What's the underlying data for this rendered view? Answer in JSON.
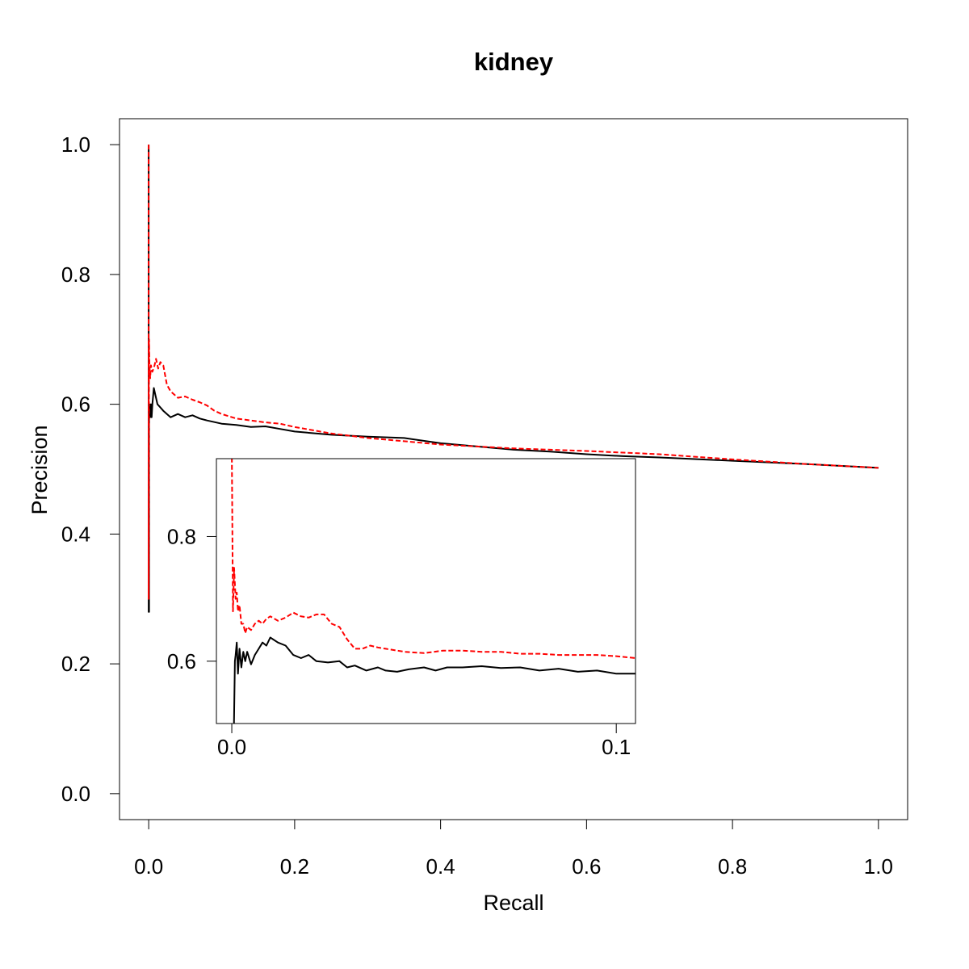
{
  "colors": {
    "series_1": "#000000",
    "series_2": "#ff0000"
  },
  "chart_data": [
    {
      "type": "line",
      "title": "kidney",
      "xlabel": "Recall",
      "ylabel": "Precision",
      "xlim": [
        -0.04,
        1.04
      ],
      "ylim": [
        -0.04,
        1.04
      ],
      "xticks": [
        0.0,
        0.2,
        0.4,
        0.6,
        0.8,
        1.0
      ],
      "xtick_labels": [
        "0.0",
        "0.2",
        "0.4",
        "0.6",
        "0.8",
        "1.0"
      ],
      "yticks": [
        0.0,
        0.2,
        0.4,
        0.6,
        0.8,
        1.0
      ],
      "ytick_labels": [
        "0.0",
        "0.2",
        "0.4",
        "0.6",
        "0.8",
        "1.0"
      ],
      "grid": false,
      "series": [
        {
          "color": "#000000",
          "dash": "solid",
          "x": [
            0,
            0,
            0.0005,
            0.0005,
            0.001,
            0.002,
            0.003,
            0.004,
            0.005,
            0.007,
            0.009,
            0.012,
            0.016,
            0.02,
            0.025,
            0.03,
            0.04,
            0.05,
            0.06,
            0.07,
            0.08,
            0.1,
            0.12,
            0.14,
            0.16,
            0.18,
            0.2,
            0.25,
            0.3,
            0.35,
            0.4,
            0.45,
            0.5,
            0.55,
            0.6,
            0.65,
            0.7,
            0.8,
            0.9,
            1.0
          ],
          "y": [
            1.0,
            0.28,
            0.28,
            0.57,
            0.6,
            0.58,
            0.6,
            0.58,
            0.6,
            0.625,
            0.615,
            0.6,
            0.595,
            0.59,
            0.585,
            0.58,
            0.585,
            0.58,
            0.583,
            0.578,
            0.575,
            0.57,
            0.568,
            0.565,
            0.566,
            0.562,
            0.558,
            0.553,
            0.55,
            0.548,
            0.54,
            0.535,
            0.53,
            0.527,
            0.523,
            0.52,
            0.518,
            0.513,
            0.508,
            0.502
          ]
        },
        {
          "color": "#ff0000",
          "dash": "dashed",
          "x": [
            0,
            0,
            0.0005,
            0.001,
            0.002,
            0.003,
            0.005,
            0.008,
            0.01,
            0.013,
            0.016,
            0.02,
            0.025,
            0.03,
            0.035,
            0.04,
            0.05,
            0.06,
            0.07,
            0.08,
            0.09,
            0.1,
            0.12,
            0.14,
            0.16,
            0.18,
            0.2,
            0.25,
            0.3,
            0.35,
            0.4,
            0.5,
            0.6,
            0.7,
            0.8,
            0.9,
            1.0
          ],
          "y": [
            1.0,
            0.3,
            0.7,
            0.66,
            0.64,
            0.66,
            0.65,
            0.66,
            0.67,
            0.655,
            0.665,
            0.66,
            0.63,
            0.62,
            0.615,
            0.61,
            0.612,
            0.607,
            0.603,
            0.598,
            0.59,
            0.585,
            0.578,
            0.575,
            0.572,
            0.57,
            0.565,
            0.555,
            0.548,
            0.543,
            0.538,
            0.532,
            0.528,
            0.523,
            0.515,
            0.508,
            0.502
          ]
        }
      ]
    },
    {
      "type": "line",
      "title": "",
      "xlabel": "",
      "ylabel": "",
      "xlim": [
        -0.004,
        0.105
      ],
      "ylim": [
        0.5,
        0.925
      ],
      "xticks": [
        0.0,
        0.1
      ],
      "xtick_labels": [
        "0.0",
        "0.1"
      ],
      "yticks": [
        0.6,
        0.8
      ],
      "ytick_labels": [
        "0.6",
        "0.8"
      ],
      "grid": false,
      "series": [
        {
          "color": "#000000",
          "dash": "solid",
          "x": [
            0,
            0.0005,
            0.0008,
            0.001,
            0.0013,
            0.0016,
            0.002,
            0.0025,
            0.003,
            0.0035,
            0.004,
            0.005,
            0.006,
            0.007,
            0.008,
            0.009,
            0.01,
            0.012,
            0.014,
            0.016,
            0.018,
            0.02,
            0.022,
            0.025,
            0.028,
            0.03,
            0.032,
            0.035,
            0.038,
            0.04,
            0.043,
            0.046,
            0.05,
            0.053,
            0.056,
            0.06,
            0.065,
            0.07,
            0.075,
            0.08,
            0.085,
            0.09,
            0.095,
            0.1,
            0.105
          ],
          "y": [
            0.5,
            0.47,
            0.6,
            0.61,
            0.63,
            0.58,
            0.62,
            0.59,
            0.615,
            0.6,
            0.615,
            0.595,
            0.61,
            0.62,
            0.63,
            0.625,
            0.638,
            0.63,
            0.625,
            0.61,
            0.605,
            0.61,
            0.6,
            0.598,
            0.6,
            0.59,
            0.593,
            0.585,
            0.59,
            0.585,
            0.583,
            0.587,
            0.59,
            0.585,
            0.59,
            0.59,
            0.592,
            0.589,
            0.59,
            0.585,
            0.588,
            0.583,
            0.585,
            0.58,
            0.58
          ]
        },
        {
          "color": "#ff0000",
          "dash": "dashed",
          "x": [
            0,
            0.0003,
            0.0006,
            0.001,
            0.0013,
            0.0016,
            0.002,
            0.0025,
            0.003,
            0.0035,
            0.004,
            0.005,
            0.006,
            0.007,
            0.008,
            0.009,
            0.01,
            0.012,
            0.014,
            0.016,
            0.018,
            0.02,
            0.022,
            0.024,
            0.026,
            0.028,
            0.03,
            0.032,
            0.034,
            0.036,
            0.038,
            0.04,
            0.045,
            0.05,
            0.055,
            0.06,
            0.065,
            0.07,
            0.075,
            0.08,
            0.085,
            0.09,
            0.095,
            0.1,
            0.105
          ],
          "y": [
            0.95,
            0.68,
            0.75,
            0.7,
            0.71,
            0.68,
            0.69,
            0.66,
            0.66,
            0.645,
            0.655,
            0.65,
            0.66,
            0.665,
            0.66,
            0.668,
            0.672,
            0.665,
            0.67,
            0.678,
            0.672,
            0.67,
            0.675,
            0.675,
            0.66,
            0.655,
            0.635,
            0.62,
            0.62,
            0.625,
            0.622,
            0.62,
            0.615,
            0.613,
            0.617,
            0.617,
            0.615,
            0.615,
            0.612,
            0.612,
            0.61,
            0.61,
            0.61,
            0.608,
            0.605
          ]
        }
      ]
    }
  ]
}
